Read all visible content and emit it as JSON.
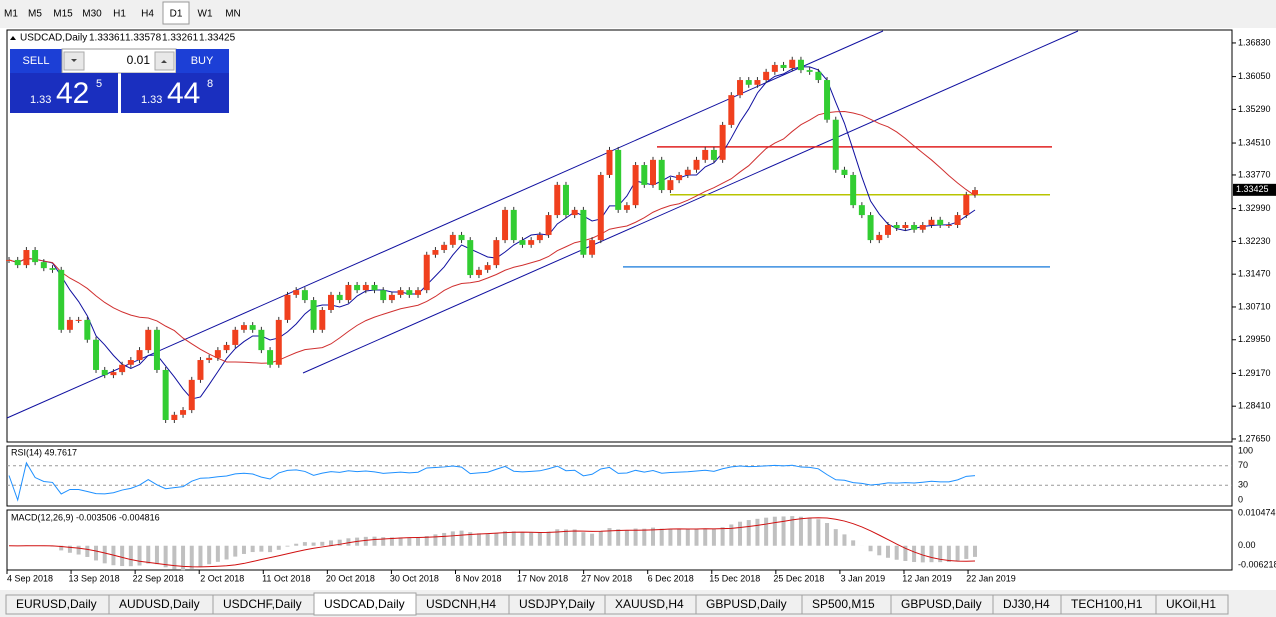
{
  "toolbar": {
    "timeframes": [
      "M1",
      "M5",
      "M15",
      "M30",
      "H1",
      "H4",
      "D1",
      "W1",
      "MN"
    ],
    "active": 6
  },
  "header": {
    "symbol": "USDCAD,Daily",
    "ohlc": [
      "1.33361",
      "1.33578",
      "1.33261",
      "1.33425"
    ]
  },
  "trade_panel": {
    "sell": "SELL",
    "buy": "BUY",
    "lot": "0.01",
    "bid": {
      "prefix": "1.33",
      "big": "42",
      "small": "5"
    },
    "ask": {
      "prefix": "1.33",
      "big": "44",
      "small": "8"
    }
  },
  "price_chart": {
    "type": "candlestick",
    "up_color": "#f0401e",
    "down_color": "#32cd32",
    "ylim": [
      1.2758,
      1.3713
    ],
    "yticks": [
      {
        "value": 1.3683,
        "label": "1.36830"
      },
      {
        "value": 1.3605,
        "label": "1.36050"
      },
      {
        "value": 1.3529,
        "label": "1.35290"
      },
      {
        "value": 1.3451,
        "label": "1.34510"
      },
      {
        "value": 1.3377,
        "label": "1.33770"
      },
      {
        "value": 1.3299,
        "label": "1.32990"
      },
      {
        "value": 1.3223,
        "label": "1.32230"
      },
      {
        "value": 1.3147,
        "label": "1.31470"
      },
      {
        "value": 1.3071,
        "label": "1.30710"
      },
      {
        "value": 1.2995,
        "label": "1.29950"
      },
      {
        "value": 1.2917,
        "label": "1.29170"
      },
      {
        "value": 1.2841,
        "label": "1.28410"
      },
      {
        "value": 1.2765,
        "label": "1.27650"
      }
    ],
    "current_price": {
      "value": 1.33425,
      "label": "1.33425"
    },
    "levels": [
      {
        "value": 1.3442,
        "color": "#e02020"
      },
      {
        "value": 1.3331,
        "color": "#b8c400"
      },
      {
        "value": 1.3164,
        "color": "#3a8ee0"
      }
    ],
    "closes": [
      1.318,
      1.3168,
      1.3203,
      1.3175,
      1.3161,
      1.3157,
      1.3018,
      1.3041,
      1.3041,
      1.2995,
      1.2925,
      1.2913,
      1.292,
      1.2937,
      1.2948,
      1.2971,
      1.3018,
      1.2925,
      1.2809,
      1.2821,
      1.2832,
      1.2902,
      1.2948,
      1.2953,
      1.2971,
      1.2983,
      1.3018,
      1.3029,
      1.3018,
      1.2971,
      1.2937,
      1.3041,
      1.3099,
      1.311,
      1.3087,
      1.3018,
      1.3064,
      1.3099,
      1.3087,
      1.3122,
      1.311,
      1.3122,
      1.311,
      1.3087,
      1.3099,
      1.311,
      1.3099,
      1.311,
      1.3192,
      1.3203,
      1.3215,
      1.3238,
      1.3226,
      1.3145,
      1.3157,
      1.3168,
      1.3226,
      1.3296,
      1.3226,
      1.3215,
      1.3226,
      1.3238,
      1.3284,
      1.3354,
      1.3284,
      1.3296,
      1.3192,
      1.3226,
      1.3377,
      1.3435,
      1.3296,
      1.3307,
      1.34,
      1.3354,
      1.3412,
      1.3342,
      1.3365,
      1.3377,
      1.3389,
      1.3412,
      1.3435,
      1.3412,
      1.3493,
      1.3562,
      1.3597,
      1.3586,
      1.3597,
      1.3616,
      1.3632,
      1.3625,
      1.3644,
      1.362,
      1.3616,
      1.3597,
      1.3505,
      1.3389,
      1.3377,
      1.3307,
      1.3284,
      1.3226,
      1.3238,
      1.3261,
      1.3254,
      1.3261,
      1.325,
      1.3261,
      1.3273,
      1.3261,
      1.3261,
      1.3284,
      1.3331,
      1.3342
    ]
  },
  "rsi": {
    "label": "RSI(14) 49.7617",
    "ylim": [
      0,
      100
    ],
    "yticks": [
      100,
      70,
      30,
      0
    ],
    "levels": [
      70,
      30
    ],
    "color": "#1e90ff"
  },
  "macd": {
    "label": "MACD(12,26,9) -0.003506 -0.004816",
    "ylim": [
      -0.0075,
      0.0112
    ],
    "yticks": [
      0.010474,
      {
        "value": 0,
        "label": "0.00"
      },
      -0.006218
    ],
    "bar_color": "#c0c0c0",
    "signal_color": "#d01010"
  },
  "date_axis": [
    "4 Sep 2018",
    "13 Sep 2018",
    "22 Sep 2018",
    "2 Oct 2018",
    "11 Oct 2018",
    "20 Oct 2018",
    "30 Oct 2018",
    "8 Nov 2018",
    "17 Nov 2018",
    "27 Nov 2018",
    "6 Dec 2018",
    "15 Dec 2018",
    "25 Dec 2018",
    "3 Jan 2019",
    "12 Jan 2019",
    "22 Jan 2019"
  ],
  "tabs": {
    "items": [
      "EURUSD,Daily",
      "AUDUSD,Daily",
      "USDCHF,Daily",
      "USDCAD,Daily",
      "USDCNH,H4",
      "USDJPY,Daily",
      "XAUUSD,H4",
      "GBPUSD,Daily",
      "SP500,M15",
      "GBPUSD,Daily",
      "DJ30,H4",
      "TECH100,H1",
      "UKOil,H1"
    ],
    "active": 3
  }
}
